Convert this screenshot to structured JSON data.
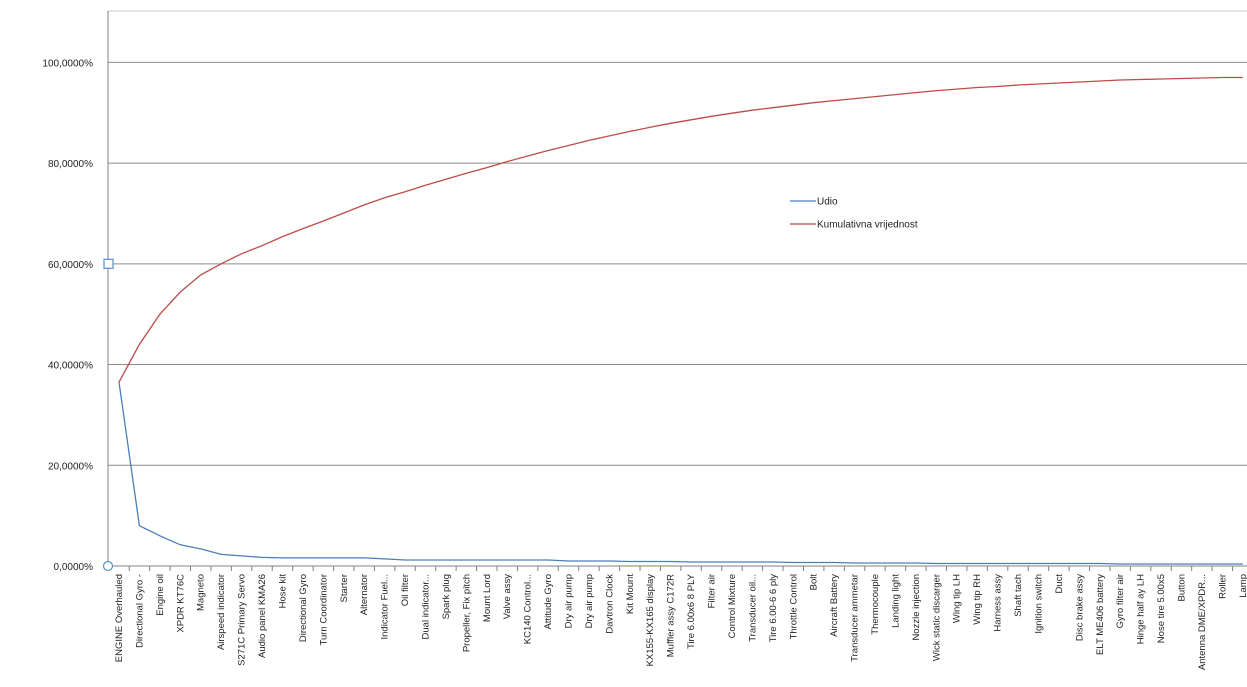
{
  "chart_data": {
    "type": "line",
    "title": "",
    "xlabel": "",
    "ylabel": "",
    "ylim": [
      0,
      110
    ],
    "yticks": [
      0,
      20,
      40,
      60,
      80,
      100
    ],
    "ytick_labels": [
      "0,0000%",
      "20,0000%",
      "40,0000%",
      "60,0000%",
      "80,0000%",
      "100,0000%"
    ],
    "grid": true,
    "legend_position": "center-right",
    "categories": [
      "ENGINE Overhauled",
      "Directional Gyro -",
      "Engine oil",
      "XPDR KT76C",
      "Magneto",
      "Airspeed indicator",
      "S271C Primary Servo",
      "Audio panel KMA26",
      "Hose kit",
      "Directional Gyro",
      "Turn Coordinator",
      "Starter",
      "Alternator",
      "Indicator Fuel...",
      "Oil filter",
      "Dual indicator...",
      "Spark plug",
      "Propeller, Fix pitch",
      "Mount Lord",
      "Valve assy",
      "KC140 Control...",
      "Attitude Gyro",
      "Dry air pump",
      "Dry air pump",
      "Davtron Clock",
      "Kit Mount",
      "KX155-KX165 display",
      "Muffler assy C172R",
      "Tire 6.00x6 8 PLY",
      "Filter air",
      "Control Mixture",
      "Transducer oil...",
      "Tire 6.00-6 6 ply",
      "Throttle Control",
      "Bolt",
      "Aircraft Battery",
      "Transducer ammetar",
      "Thermocouple",
      "Landing light",
      "Nozzle injection",
      "Wick static discarger",
      "Wing tip LH",
      "Wing tip RH",
      "Harness assy",
      "Shaft tach",
      "Ignition switch",
      "Duct",
      "Disc brake assy",
      "ELT ME406 battery",
      "Gyro filter air",
      "Hinge half ay LH",
      "Nose tire 5.00x5",
      "Button",
      "Antenna DME/XPDR...",
      "Roller",
      "Lamp"
    ],
    "series": [
      {
        "name": "Udio",
        "color": "#4a7ebb",
        "values": [
          36.5,
          8.0,
          6.0,
          4.2,
          3.4,
          2.3,
          2.0,
          1.7,
          1.6,
          1.6,
          1.6,
          1.6,
          1.6,
          1.4,
          1.2,
          1.2,
          1.2,
          1.2,
          1.2,
          1.2,
          1.2,
          1.2,
          1.0,
          1.0,
          1.0,
          0.9,
          0.9,
          0.9,
          0.8,
          0.8,
          0.8,
          0.8,
          0.8,
          0.7,
          0.7,
          0.7,
          0.6,
          0.6,
          0.6,
          0.6,
          0.5,
          0.5,
          0.5,
          0.5,
          0.5,
          0.5,
          0.5,
          0.5,
          0.5,
          0.4,
          0.4,
          0.4,
          0.4,
          0.4,
          0.4,
          0.4
        ]
      },
      {
        "name": "Kumulativna vrijednost",
        "color": "#be4b48",
        "values": [
          36.5,
          44.0,
          50.0,
          54.4,
          57.8,
          60.0,
          62.0,
          63.6,
          65.4,
          67.0,
          68.5,
          70.1,
          71.7,
          73.1,
          74.3,
          75.6,
          76.8,
          78.0,
          79.1,
          80.3,
          81.4,
          82.5,
          83.5,
          84.5,
          85.4,
          86.3,
          87.1,
          87.9,
          88.6,
          89.3,
          89.9,
          90.5,
          91.0,
          91.5,
          92.0,
          92.4,
          92.8,
          93.2,
          93.6,
          94.0,
          94.4,
          94.7,
          95.0,
          95.2,
          95.5,
          95.7,
          95.9,
          96.1,
          96.3,
          96.5,
          96.6,
          96.7,
          96.8,
          96.9,
          97.0,
          97.0
        ]
      }
    ]
  }
}
